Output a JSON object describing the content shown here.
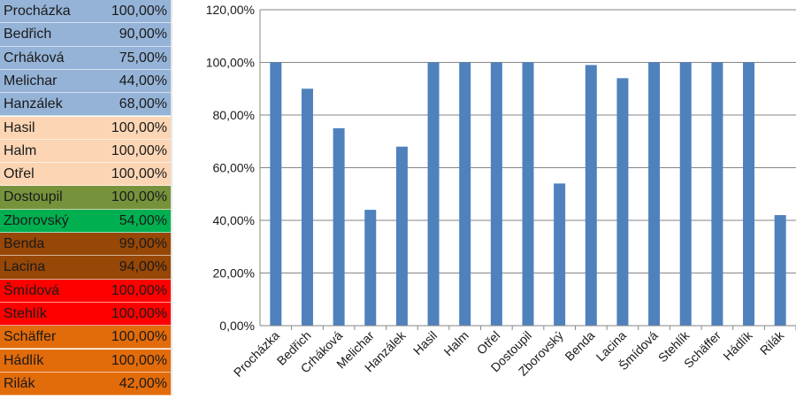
{
  "table": {
    "rows": [
      {
        "name": "Procházka",
        "value": "100,00%",
        "color": "#95b3d7"
      },
      {
        "name": "Bedřich",
        "value": "90,00%",
        "color": "#95b3d7"
      },
      {
        "name": "Crháková",
        "value": "75,00%",
        "color": "#95b3d7"
      },
      {
        "name": "Melichar",
        "value": "44,00%",
        "color": "#95b3d7"
      },
      {
        "name": "Hanzálek",
        "value": "68,00%",
        "color": "#95b3d7"
      },
      {
        "name": "Hasil",
        "value": "100,00%",
        "color": "#fcd5b4"
      },
      {
        "name": "Halm",
        "value": "100,00%",
        "color": "#fcd5b4"
      },
      {
        "name": "Otřel",
        "value": "100,00%",
        "color": "#fcd5b4"
      },
      {
        "name": "Dostoupil",
        "value": "100,00%",
        "color": "#76933c"
      },
      {
        "name": "Zborovský",
        "value": "54,00%",
        "color": "#00b050"
      },
      {
        "name": "Benda",
        "value": "99,00%",
        "color": "#974706"
      },
      {
        "name": "Lacina",
        "value": "94,00%",
        "color": "#974706"
      },
      {
        "name": "Šmídová",
        "value": "100,00%",
        "color": "#ff0000"
      },
      {
        "name": "Stehlík",
        "value": "100,00%",
        "color": "#ff0000"
      },
      {
        "name": "Schäffer",
        "value": "100,00%",
        "color": "#e26b0a"
      },
      {
        "name": "Hádlík",
        "value": "100,00%",
        "color": "#e26b0a"
      },
      {
        "name": "Rilák",
        "value": "42,00%",
        "color": "#e26b0a"
      }
    ]
  },
  "chart_data": {
    "type": "bar",
    "categories": [
      "Procházka",
      "Bedřich",
      "Crháková",
      "Melichar",
      "Hanzálek",
      "Hasil",
      "Halm",
      "Otřel",
      "Dostoupil",
      "Zborovský",
      "Benda",
      "Lacina",
      "Šmídová",
      "Stehlík",
      "Schäffer",
      "Hádlík",
      "Rilák"
    ],
    "series": [
      {
        "values": [
          100,
          90,
          75,
          44,
          68,
          100,
          100,
          100,
          100,
          54,
          99,
          94,
          100,
          100,
          100,
          100,
          42
        ]
      }
    ],
    "ylim": [
      0,
      120
    ],
    "yticks": [
      0,
      20,
      40,
      60,
      80,
      100,
      120
    ],
    "ytick_labels": [
      "0,00%",
      "20,00%",
      "40,00%",
      "60,00%",
      "80,00%",
      "100,00%",
      "120,00%"
    ],
    "grid": true,
    "legend": "none",
    "title": "",
    "xlabel": "",
    "ylabel": "",
    "bar_color": "#4f81bd",
    "grid_color": "#868686"
  }
}
